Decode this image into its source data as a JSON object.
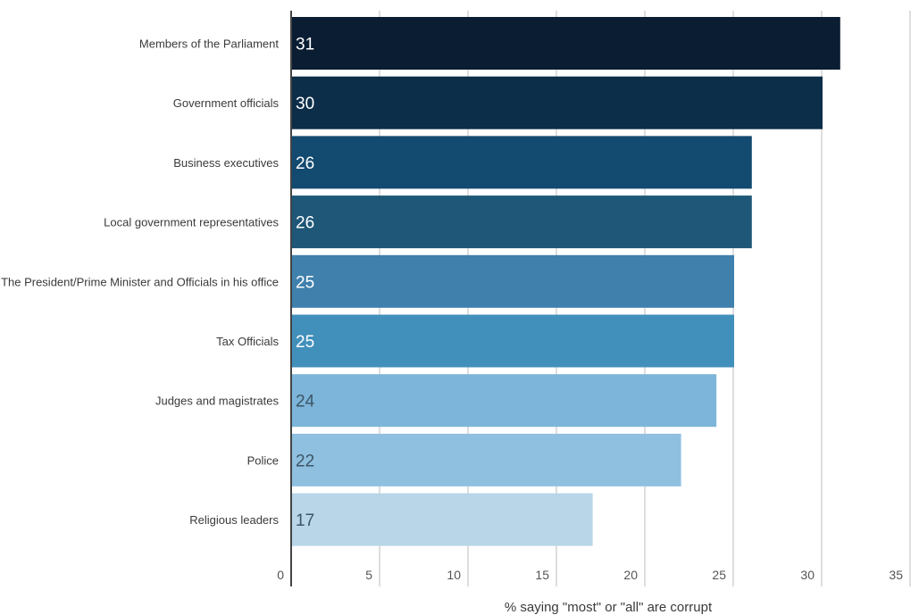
{
  "chart_data": {
    "type": "bar",
    "orientation": "horizontal",
    "categories": [
      "Members of the Parliament",
      "Government officials",
      "Business executives",
      "Local government representatives",
      "The President/Prime Minister and Officials in his office",
      "Tax Officials",
      "Judges and magistrates",
      "Police",
      "Religious leaders"
    ],
    "values": [
      31,
      30,
      26,
      26,
      25,
      25,
      24,
      22,
      17
    ],
    "value_labels": [
      "31",
      "30",
      "26",
      "26",
      "25",
      "25",
      "24",
      "22",
      "17"
    ],
    "bar_colors": [
      "#0b1d33",
      "#0d2e49",
      "#134a70",
      "#1e5777",
      "#3f80ad",
      "#4190bb",
      "#7cb5d9",
      "#8fc0e0",
      "#b8d6e8"
    ],
    "value_label_colors": [
      "#ffffff",
      "#ffffff",
      "#ffffff",
      "#ffffff",
      "#ffffff",
      "#ffffff",
      "#3d5566",
      "#3d5566",
      "#3d5566"
    ],
    "xlim": [
      0,
      35
    ],
    "xticks": [
      0,
      5,
      10,
      15,
      20,
      25,
      30,
      35
    ],
    "xlabel": "% saying \"most\" or \"all\" are corrupt",
    "ylabel": "",
    "title": "",
    "grid": "vertical",
    "legend": "none"
  }
}
